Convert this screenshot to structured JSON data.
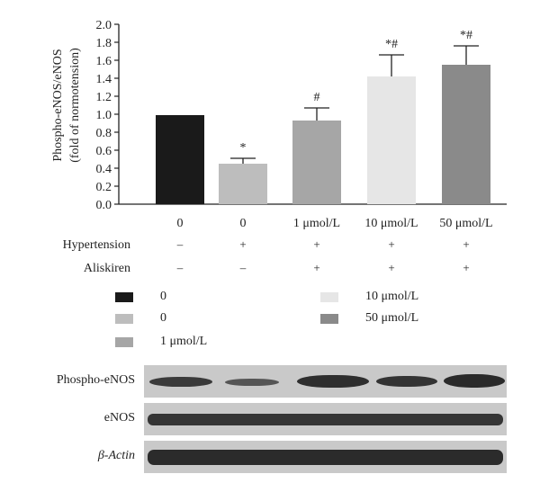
{
  "chart_data": {
    "type": "bar",
    "ylabel_line1": "Phospho-eNOS/eNOS",
    "ylabel_line2": "(fold of normotension)",
    "ylim": [
      0,
      2.0
    ],
    "yticks": [
      "0.0",
      "0.2",
      "0.4",
      "0.6",
      "0.8",
      "1.0",
      "1.2",
      "1.4",
      "1.6",
      "1.8",
      "2.0"
    ],
    "categories": [
      "0",
      "0",
      "1 μmol/L",
      "10 μmol/L",
      "50 μmol/L"
    ],
    "values": [
      0.99,
      0.45,
      0.93,
      1.42,
      1.55
    ],
    "errors": [
      0,
      0.06,
      0.14,
      0.24,
      0.21
    ],
    "significance": [
      "",
      "*",
      "#",
      "*#",
      "*#"
    ],
    "colors": [
      "#1a1a1a",
      "#bdbdbd",
      "#a6a6a6",
      "#e6e6e6",
      "#8a8a8a"
    ],
    "rows": [
      {
        "label": "Hypertension",
        "symbols": [
          "–",
          "+",
          "+",
          "+",
          "+"
        ]
      },
      {
        "label": "Aliskiren",
        "symbols": [
          "–",
          "–",
          "+",
          "+",
          "+"
        ]
      }
    ]
  },
  "legend": [
    {
      "label": "0",
      "color": "#1a1a1a"
    },
    {
      "label": "0",
      "color": "#bdbdbd"
    },
    {
      "label": "1 μmol/L",
      "color": "#a6a6a6"
    },
    {
      "label": "10 μmol/L",
      "color": "#e6e6e6"
    },
    {
      "label": "50 μmol/L",
      "color": "#8a8a8a"
    }
  ],
  "blots": {
    "labels": [
      "Phospho-eNOS",
      "eNOS",
      "β-Actin"
    ]
  }
}
